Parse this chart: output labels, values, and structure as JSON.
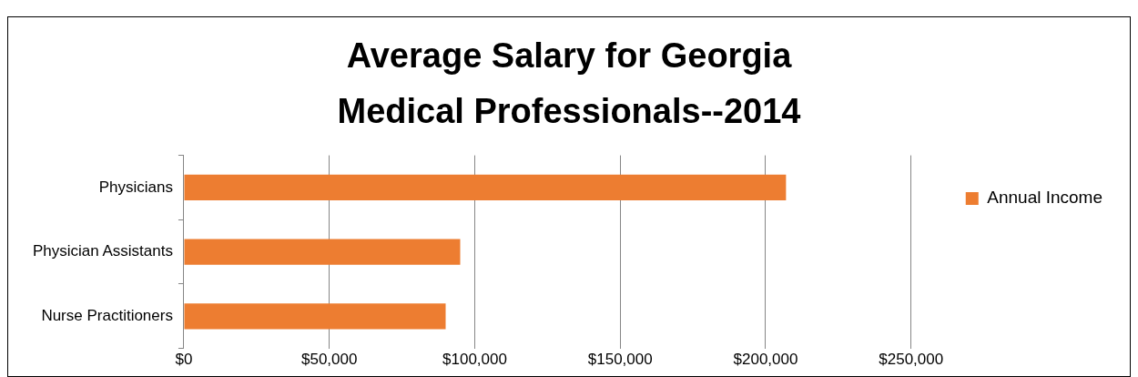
{
  "chart_data": {
    "type": "bar",
    "orientation": "horizontal",
    "title": "Average Salary for Georgia Medical Professionals--2014",
    "categories": [
      "Physicians",
      "Physician Assistants",
      "Nurse Practitioners"
    ],
    "series": [
      {
        "name": "Annual Income",
        "color": "#ed7d31",
        "values": [
          207000,
          95000,
          90000
        ]
      }
    ],
    "xlim": [
      0,
      250000
    ],
    "xticks": [
      {
        "value": 0,
        "label": "$0"
      },
      {
        "value": 50000,
        "label": "$50,000"
      },
      {
        "value": 100000,
        "label": "$100,000"
      },
      {
        "value": 150000,
        "label": "$150,000"
      },
      {
        "value": 200000,
        "label": "$200,000"
      },
      {
        "value": 250000,
        "label": "$250,000"
      }
    ],
    "grid": "x",
    "legend": "right"
  }
}
